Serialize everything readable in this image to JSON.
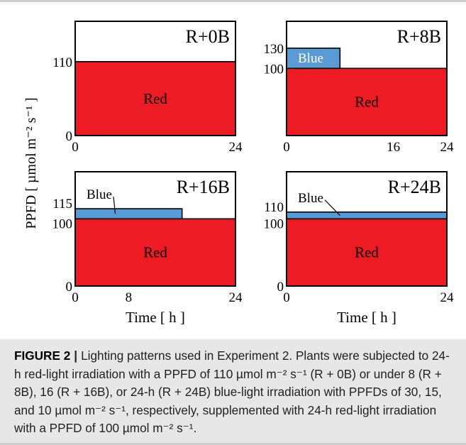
{
  "chart_data": {
    "type": "area",
    "ylabel": "PPFD [ µmol m⁻² s⁻¹ ]",
    "xlabel": "Time [ h ]",
    "xlim": [
      0,
      24
    ],
    "ylim": [
      0,
      170
    ],
    "colors": {
      "red": "#ed1c24",
      "blue": "#5b9bd5"
    },
    "panels": [
      {
        "title": "R+0B",
        "x_ticks": [
          "0",
          "24"
        ],
        "y_ticks": [
          {
            "value": 0,
            "label": "0"
          },
          {
            "value": 110,
            "label": "110"
          }
        ],
        "series": [
          {
            "name": "Red",
            "from": 0,
            "to": 24,
            "ppfd_bottom": 0,
            "ppfd_top": 110
          }
        ],
        "annotations": []
      },
      {
        "title": "R+8B",
        "x_ticks": [
          "0",
          "16",
          "24"
        ],
        "y_ticks": [
          {
            "value": 100,
            "label": "100"
          },
          {
            "value": 130,
            "label": "130"
          }
        ],
        "series": [
          {
            "name": "Red",
            "from": 0,
            "to": 24,
            "ppfd_bottom": 0,
            "ppfd_top": 100
          },
          {
            "name": "Blue",
            "from": 0,
            "to": 8,
            "ppfd_bottom": 100,
            "ppfd_top": 130
          }
        ],
        "annotations": [
          {
            "text": "Blue",
            "inside": true
          }
        ]
      },
      {
        "title": "R+16B",
        "x_ticks": [
          "0",
          "8",
          "24"
        ],
        "y_ticks": [
          {
            "value": 0,
            "label": "0"
          },
          {
            "value": 100,
            "label": "100"
          },
          {
            "value": 115,
            "label": "115"
          }
        ],
        "series": [
          {
            "name": "Red",
            "from": 0,
            "to": 24,
            "ppfd_bottom": 0,
            "ppfd_top": 100
          },
          {
            "name": "Blue",
            "from": 0,
            "to": 16,
            "ppfd_bottom": 100,
            "ppfd_top": 115
          }
        ],
        "annotations": [
          {
            "text": "Blue",
            "inside": false,
            "target_x": 6
          }
        ]
      },
      {
        "title": "R+24B",
        "x_ticks": [
          "0",
          "24"
        ],
        "y_ticks": [
          {
            "value": 0,
            "label": "0"
          },
          {
            "value": 100,
            "label": "100"
          },
          {
            "value": 110,
            "label": "110"
          }
        ],
        "series": [
          {
            "name": "Red",
            "from": 0,
            "to": 24,
            "ppfd_bottom": 0,
            "ppfd_top": 100
          },
          {
            "name": "Blue",
            "from": 0,
            "to": 24,
            "ppfd_bottom": 100,
            "ppfd_top": 110
          }
        ],
        "annotations": [
          {
            "text": "Blue",
            "inside": false,
            "target_x": 8
          }
        ]
      }
    ]
  },
  "caption": {
    "label": "FIGURE 2",
    "separator": "|",
    "text": "Lighting patterns used in Experiment 2. Plants were subjected to 24-h red-light irradiation with a PPFD of 110 µmol m⁻² s⁻¹ (R + 0B) or under 8 (R + 8B), 16 (R + 16B), or 24-h (R + 24B) blue-light irradiation with PPFDs of 30, 15, and 10 µmol m⁻² s⁻¹, respectively, supplemented with 24-h red-light irradiation with a PPFD of 100 µmol m⁻² s⁻¹."
  }
}
